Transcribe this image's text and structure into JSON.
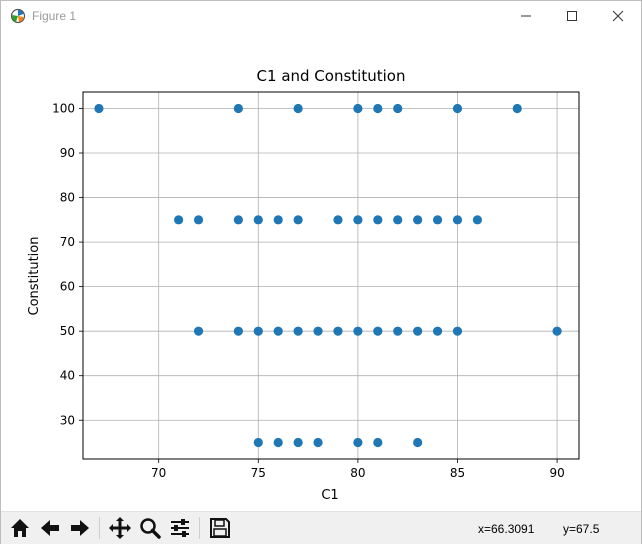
{
  "window": {
    "title": "Figure 1",
    "icons": [
      "figure-app-icon",
      "minimize-icon",
      "maximize-icon",
      "close-icon"
    ]
  },
  "toolbar": {
    "icons": [
      "home-icon",
      "back-arrow-icon",
      "forward-arrow-icon",
      "pan-icon",
      "zoom-icon",
      "configure-subplots-icon",
      "save-icon"
    ],
    "x_readout": "x=66.3091",
    "y_readout": "y=67.5"
  },
  "chart_data": {
    "type": "scatter",
    "title": "C1 and Constitution",
    "xlabel": "C1",
    "ylabel": "Constitution",
    "xlim": [
      66.2,
      91.1
    ],
    "ylim": [
      21.3,
      103.7
    ],
    "xticks": [
      70,
      75,
      80,
      85,
      90
    ],
    "yticks": [
      30,
      40,
      50,
      60,
      70,
      80,
      90,
      100
    ],
    "xtick_labels": [
      "70",
      "75",
      "80",
      "85",
      "90"
    ],
    "ytick_labels": [
      "30",
      "40",
      "50",
      "60",
      "70",
      "80",
      "90",
      "100"
    ],
    "grid": true,
    "marker_color": "#1f77b4",
    "points": [
      [
        67,
        100
      ],
      [
        74,
        100
      ],
      [
        77,
        100
      ],
      [
        80,
        100
      ],
      [
        81,
        100
      ],
      [
        82,
        100
      ],
      [
        85,
        100
      ],
      [
        88,
        100
      ],
      [
        71,
        75
      ],
      [
        72,
        75
      ],
      [
        74,
        75
      ],
      [
        75,
        75
      ],
      [
        76,
        75
      ],
      [
        77,
        75
      ],
      [
        79,
        75
      ],
      [
        80,
        75
      ],
      [
        81,
        75
      ],
      [
        82,
        75
      ],
      [
        83,
        75
      ],
      [
        84,
        75
      ],
      [
        85,
        75
      ],
      [
        86,
        75
      ],
      [
        72,
        50
      ],
      [
        74,
        50
      ],
      [
        75,
        50
      ],
      [
        76,
        50
      ],
      [
        77,
        50
      ],
      [
        78,
        50
      ],
      [
        79,
        50
      ],
      [
        80,
        50
      ],
      [
        81,
        50
      ],
      [
        82,
        50
      ],
      [
        83,
        50
      ],
      [
        84,
        50
      ],
      [
        85,
        50
      ],
      [
        90,
        50
      ],
      [
        75,
        25
      ],
      [
        76,
        25
      ],
      [
        77,
        25
      ],
      [
        78,
        25
      ],
      [
        80,
        25
      ],
      [
        81,
        25
      ],
      [
        83,
        25
      ]
    ]
  }
}
